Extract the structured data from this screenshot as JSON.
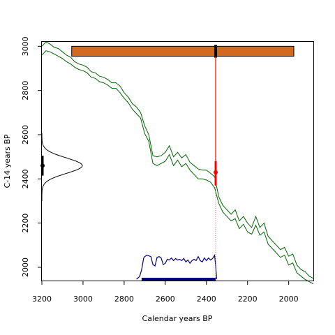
{
  "chart_data": {
    "type": "line",
    "title": "",
    "xlabel": "Calendar years BP",
    "ylabel": "C-14 years BP",
    "xlim": [
      3200,
      1880
    ],
    "ylim": [
      1940,
      3020
    ],
    "x_ticks": [
      3200,
      3000,
      2800,
      2600,
      2400,
      2200,
      2000
    ],
    "y_ticks": [
      2000,
      2200,
      2400,
      2600,
      2800,
      3000
    ],
    "tick_labels_x": [
      "3200",
      "3000",
      "2800",
      "2600",
      "2400",
      "2200",
      "2000"
    ],
    "tick_labels_y": [
      "2000",
      "2200",
      "2400",
      "2600",
      "2800",
      "3000"
    ],
    "grid": false,
    "legend": "none",
    "calibration_curve": {
      "x": [
        3200,
        3180,
        3160,
        3140,
        3120,
        3100,
        3080,
        3060,
        3040,
        3020,
        3000,
        2980,
        2960,
        2940,
        2920,
        2900,
        2880,
        2860,
        2840,
        2820,
        2800,
        2780,
        2760,
        2740,
        2720,
        2700,
        2680,
        2660,
        2640,
        2620,
        2600,
        2580,
        2560,
        2540,
        2520,
        2500,
        2480,
        2460,
        2440,
        2420,
        2400,
        2380,
        2360,
        2340,
        2320,
        2300,
        2280,
        2260,
        2240,
        2220,
        2200,
        2180,
        2160,
        2140,
        2120,
        2100,
        2080,
        2060,
        2040,
        2020,
        2000,
        1980,
        1960,
        1940,
        1920,
        1900,
        1880
      ],
      "upper": [
        3000,
        3020,
        3010,
        2995,
        2990,
        2975,
        2960,
        2950,
        2930,
        2920,
        2915,
        2905,
        2885,
        2880,
        2865,
        2860,
        2850,
        2835,
        2835,
        2820,
        2790,
        2770,
        2740,
        2725,
        2700,
        2640,
        2600,
        2505,
        2500,
        2505,
        2520,
        2550,
        2500,
        2520,
        2495,
        2510,
        2475,
        2460,
        2445,
        2440,
        2440,
        2425,
        2410,
        2320,
        2280,
        2260,
        2240,
        2260,
        2210,
        2230,
        2200,
        2180,
        2230,
        2180,
        2200,
        2140,
        2120,
        2100,
        2080,
        2090,
        2050,
        2060,
        2010,
        1990,
        1980,
        1960,
        1950
      ],
      "lower": [
        2960,
        2980,
        2975,
        2965,
        2955,
        2945,
        2930,
        2920,
        2905,
        2895,
        2890,
        2880,
        2860,
        2855,
        2840,
        2835,
        2825,
        2810,
        2810,
        2790,
        2765,
        2745,
        2715,
        2695,
        2675,
        2605,
        2570,
        2470,
        2460,
        2470,
        2480,
        2510,
        2460,
        2485,
        2455,
        2470,
        2440,
        2420,
        2400,
        2400,
        2395,
        2385,
        2360,
        2290,
        2250,
        2230,
        2210,
        2220,
        2175,
        2195,
        2160,
        2150,
        2190,
        2145,
        2160,
        2105,
        2085,
        2065,
        2045,
        2055,
        2010,
        2020,
        1975,
        1960,
        1945,
        1935,
        1925
      ]
    },
    "c14_distribution": {
      "mean": 2460,
      "sd": 35,
      "range": [
        2300,
        2610
      ],
      "mean_marker": 2460
    },
    "calendar_distribution": {
      "x": [
        2740,
        2725,
        2715,
        2705,
        2700,
        2690,
        2680,
        2670,
        2660,
        2650,
        2640,
        2630,
        2620,
        2610,
        2600,
        2590,
        2580,
        2570,
        2560,
        2550,
        2540,
        2530,
        2520,
        2510,
        2500,
        2490,
        2480,
        2470,
        2460,
        2450,
        2440,
        2430,
        2420,
        2410,
        2400,
        2390,
        2380,
        2370,
        2360,
        2355,
        2350
      ],
      "density": [
        0.0,
        0.1,
        0.35,
        0.8,
        0.85,
        0.9,
        0.88,
        0.85,
        0.55,
        0.5,
        0.82,
        0.85,
        0.8,
        0.55,
        0.6,
        0.75,
        0.72,
        0.8,
        0.7,
        0.78,
        0.72,
        0.75,
        0.7,
        0.78,
        0.65,
        0.72,
        0.6,
        0.7,
        0.75,
        0.7,
        0.85,
        0.7,
        0.65,
        0.8,
        0.7,
        0.8,
        0.72,
        0.78,
        0.9,
        0.5,
        0.0
      ],
      "hpd_range": [
        2715,
        2355
      ]
    },
    "calibrated_range_bar": {
      "from": 3055,
      "to": 1975,
      "c14_from": 2955,
      "c14_to": 3000,
      "median_mark": 2355
    },
    "calibrated_median": 2355,
    "measured_c14": 2430,
    "measured_c14_error_range": [
      2370,
      2480
    ],
    "colors": {
      "curve": "#006400",
      "c14_distribution": "#000000",
      "calendar_distribution": "#00007f",
      "hpd_bar": "#00007f",
      "range_bar_fill": "#d2691e",
      "median_line": "#ff0000",
      "median_dotted": "#cd5c5c"
    }
  }
}
